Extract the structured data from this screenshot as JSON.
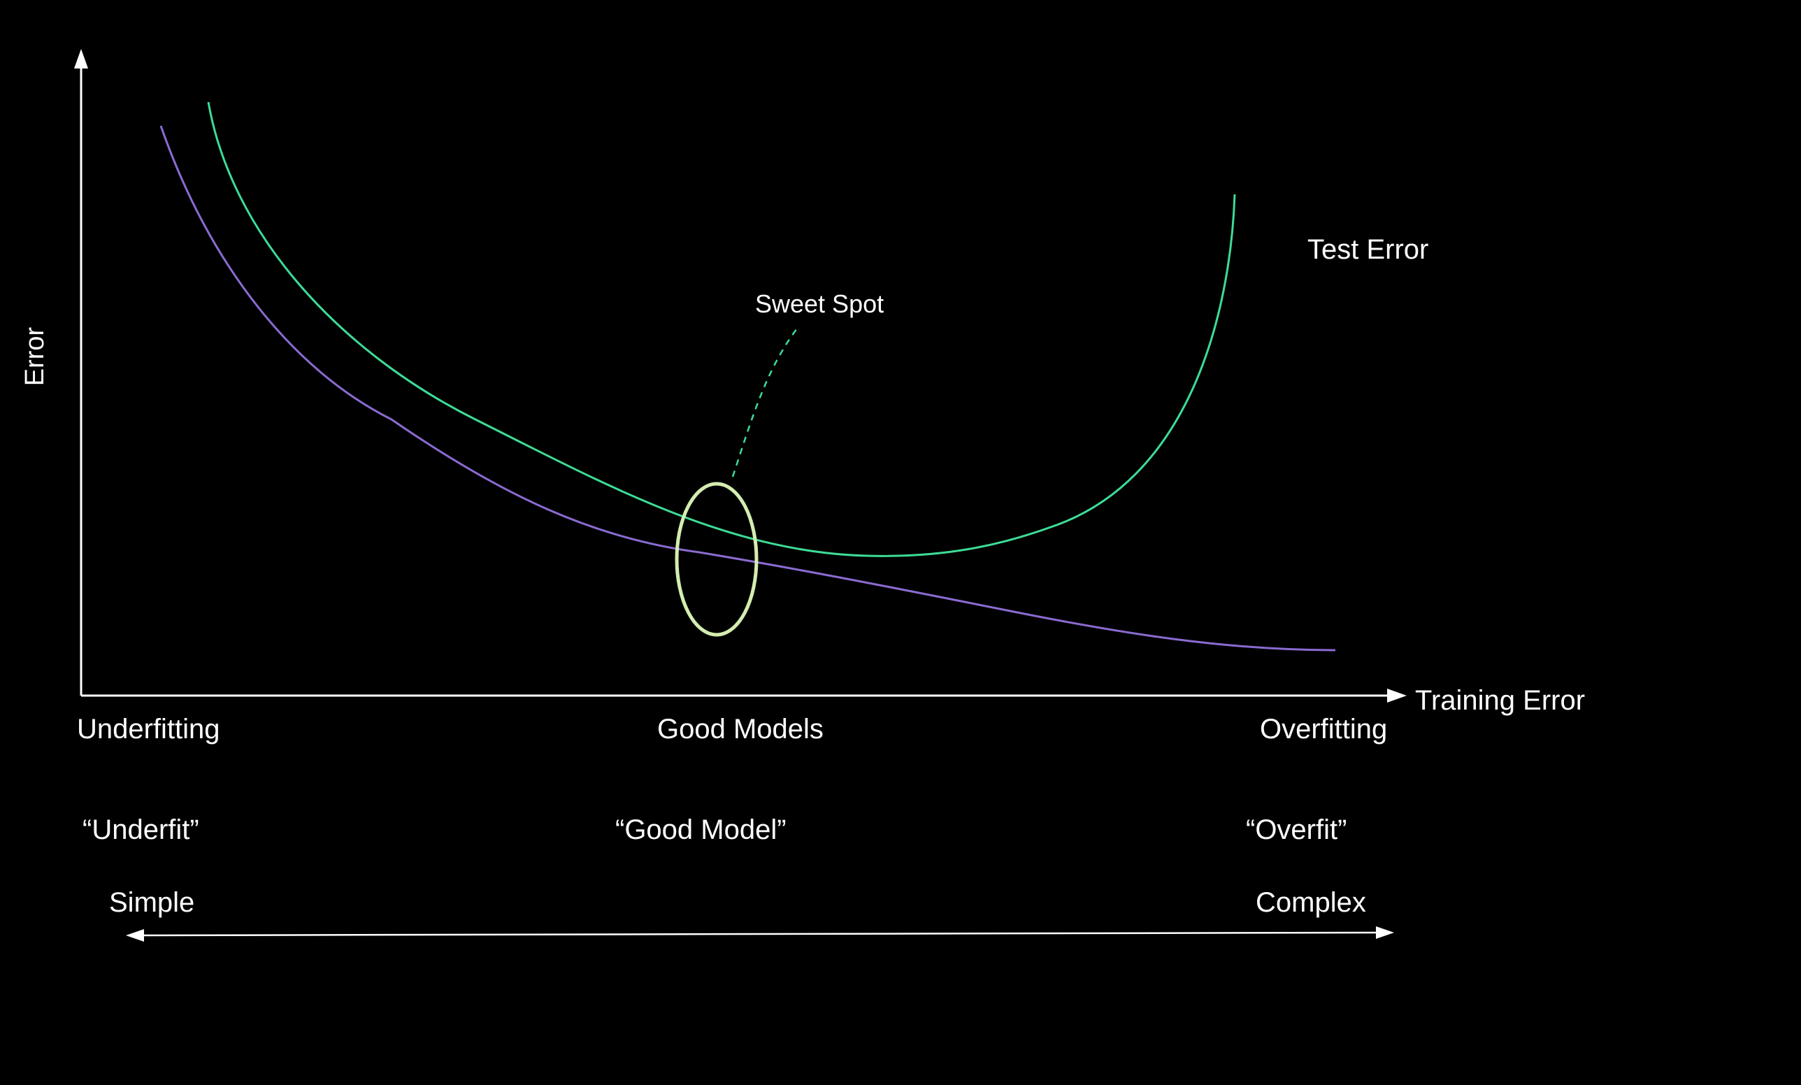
{
  "colors": {
    "background": "#000000",
    "axis": "#ffffff",
    "test_error_curve": "#3ddc97",
    "training_error_curve": "#8a6bd1",
    "sweet_spot_ellipse": "#d4edb0",
    "text": "#ffffff"
  },
  "axes": {
    "y_label": "Error",
    "x_label": "Training Error"
  },
  "curves": {
    "test_label": "Test Error"
  },
  "annotation": {
    "sweet_spot": "Sweet Spot"
  },
  "regions": {
    "left": "Underfitting",
    "middle": "Good Models",
    "right": "Overfitting"
  },
  "quotes": {
    "left": "“Underfit”",
    "middle": "“Good Model”",
    "right": "“Overfit”"
  },
  "complexity": {
    "left": "Simple",
    "right": "Complex"
  }
}
